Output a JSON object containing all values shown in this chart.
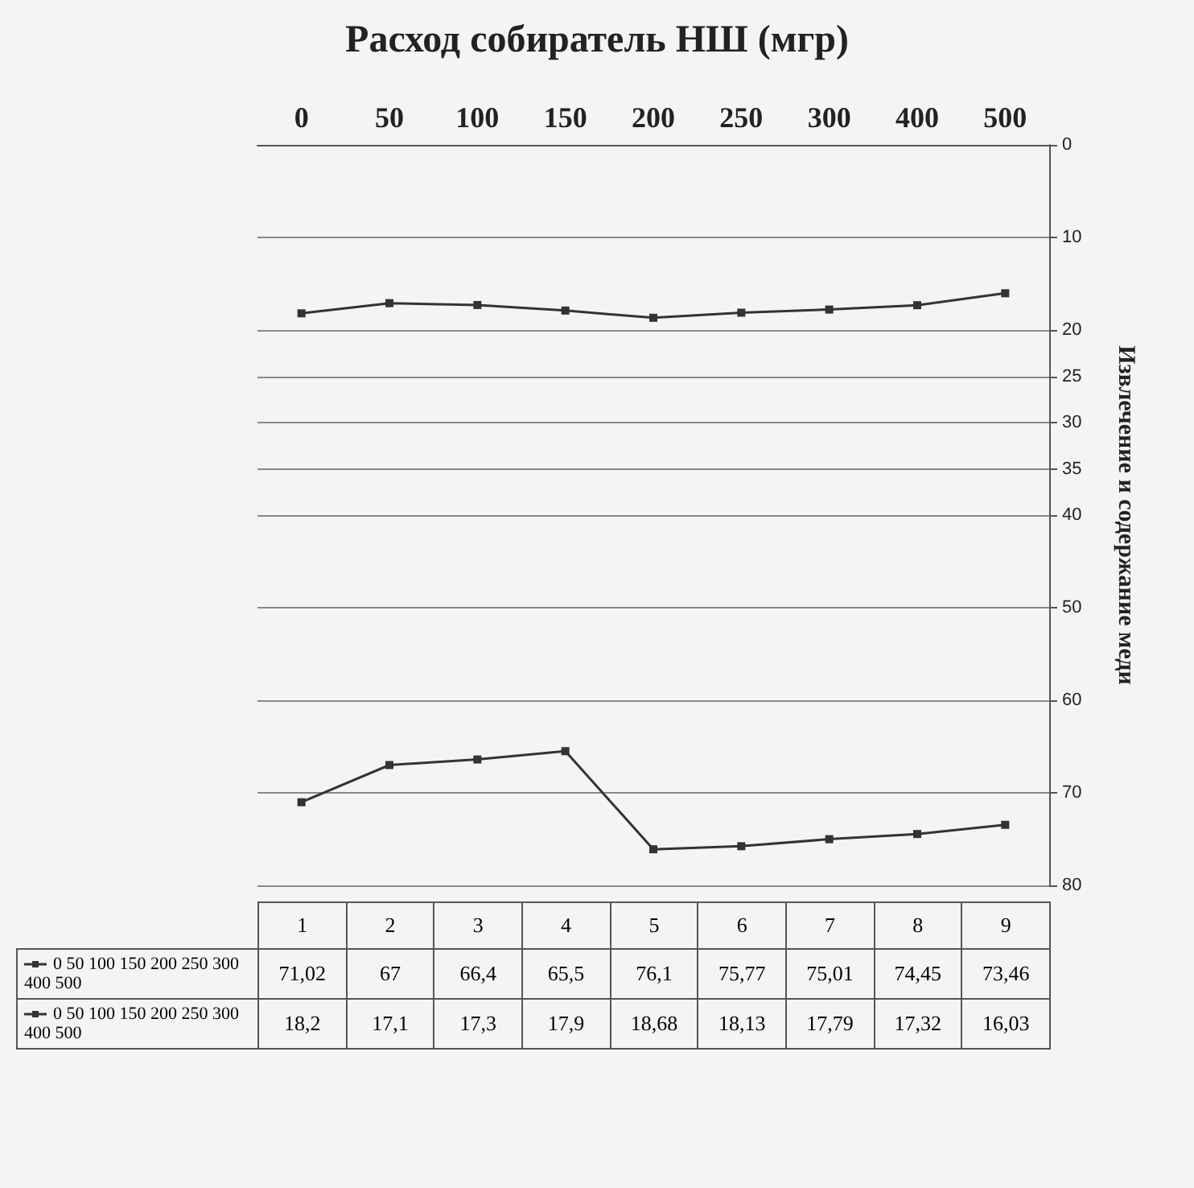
{
  "chart_data": {
    "type": "line",
    "title": "Расход собиратель НШ (мгр)",
    "ylabel": "Извлечение и содержание меди",
    "categories": [
      "0",
      "50",
      "100",
      "150",
      "200",
      "250",
      "300",
      "400",
      "500"
    ],
    "series": [
      {
        "name": "0 50 100 150 200 250 300 400 500",
        "color": "#333333",
        "values": [
          71.02,
          67,
          66.4,
          65.5,
          76.1,
          75.77,
          75.01,
          74.45,
          73.46
        ],
        "value_labels": [
          "71,02",
          "67",
          "66,4",
          "65,5",
          "76,1",
          "75,77",
          "75,01",
          "74,45",
          "73,46"
        ]
      },
      {
        "name": "0 50 100 150 200 250 300 400 500",
        "color": "#333333",
        "values": [
          18.2,
          17.1,
          17.3,
          17.9,
          18.68,
          18.13,
          17.79,
          17.32,
          16.03
        ],
        "value_labels": [
          "18,2",
          "17,1",
          "17,3",
          "17,9",
          "18,68",
          "18,13",
          "17,79",
          "17,32",
          "16,03"
        ]
      }
    ],
    "annotations": [
      "1",
      "2",
      "3",
      "4",
      "5",
      "6",
      "7",
      "8",
      "9"
    ],
    "ylim": [
      80,
      0
    ],
    "yticks": [
      80,
      70,
      60,
      50,
      40,
      35,
      30,
      25,
      20,
      10,
      0
    ],
    "grid": "y",
    "legend": "bottom",
    "marker": "square",
    "line_style": "solid"
  }
}
